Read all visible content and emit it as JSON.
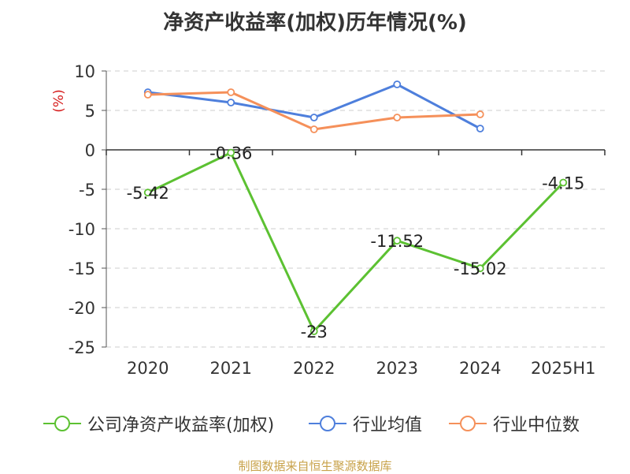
{
  "title": "净资产收益率(加权)历年情况(%)",
  "source_note": "制图数据来自恒生聚源数据库",
  "chart_data": {
    "type": "line",
    "categories": [
      "2020",
      "2021",
      "2022",
      "2023",
      "2024",
      "2025H1"
    ],
    "ylabel": "(%)",
    "ylim": [
      -25,
      10
    ],
    "yticks": [
      10,
      5,
      0,
      -5,
      -10,
      -15,
      -20,
      -25
    ],
    "grid": true,
    "legend_position": "bottom",
    "series": [
      {
        "name": "公司净资产收益率(加权)",
        "color": "#5cc132",
        "values": [
          -5.42,
          -0.36,
          -23,
          -11.52,
          -15.02,
          -4.15
        ],
        "labels": [
          "-5.42",
          "-0.36",
          "-23",
          "-11.52",
          "-15.02",
          "-4.15"
        ]
      },
      {
        "name": "行业均值",
        "color": "#4e7fdc",
        "values": [
          7.3,
          6.0,
          4.1,
          8.3,
          2.7,
          null
        ]
      },
      {
        "name": "行业中位数",
        "color": "#f5905a",
        "values": [
          7.0,
          7.3,
          2.6,
          4.1,
          4.5,
          null
        ]
      }
    ]
  },
  "colors": {
    "axis_label": "#d61b1b",
    "text": "#333333",
    "grid": "#cccccc"
  }
}
